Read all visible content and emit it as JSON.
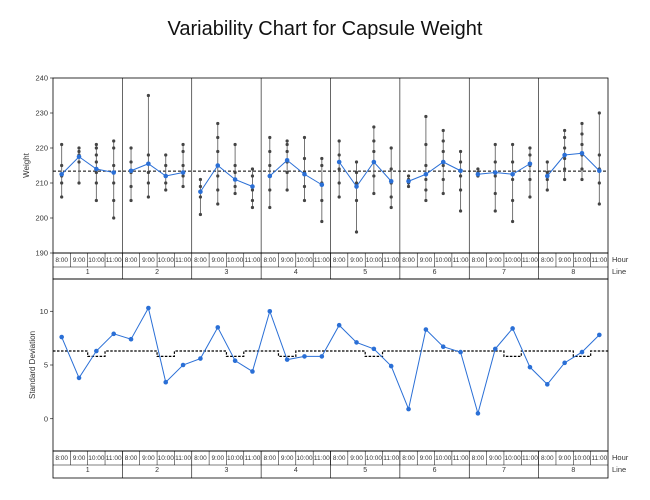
{
  "chart_data": {
    "type": "variability",
    "title": "Variability Chart for Capsule Weight",
    "x_levels": {
      "hour_label": "Hour",
      "line_label": "Line",
      "lines": [
        "1",
        "2",
        "3",
        "4",
        "5",
        "6",
        "7",
        "8"
      ],
      "hours": [
        "8:00",
        "9:00",
        "10:00",
        "11:00"
      ]
    },
    "colors": {
      "series": "#2a6fd6",
      "points": "#444444",
      "grid": "#000000",
      "reference": "#000000"
    },
    "top": {
      "ylabel": "Weight",
      "ylim": [
        190,
        240
      ],
      "yticks": [
        190,
        200,
        210,
        220,
        230,
        240
      ],
      "grand_mean": 213.4,
      "cells": [
        {
          "line": "1",
          "hour": "8:00",
          "mean": 212.5,
          "min": 206,
          "max": 221,
          "points": [
            206,
            210,
            212,
            215,
            221
          ]
        },
        {
          "line": "1",
          "hour": "9:00",
          "mean": 217.5,
          "min": 210,
          "max": 220,
          "points": [
            210,
            216,
            218,
            219,
            220
          ]
        },
        {
          "line": "1",
          "hour": "10:00",
          "mean": 214,
          "min": 205,
          "max": 221,
          "points": [
            205,
            210,
            213,
            216,
            218,
            220,
            221
          ]
        },
        {
          "line": "1",
          "hour": "11:00",
          "mean": 213,
          "min": 200,
          "max": 222,
          "points": [
            200,
            205,
            210,
            215,
            220,
            222
          ]
        },
        {
          "line": "2",
          "hour": "8:00",
          "mean": 213.5,
          "min": 205,
          "max": 220,
          "points": [
            205,
            209,
            213,
            216,
            220
          ]
        },
        {
          "line": "2",
          "hour": "9:00",
          "mean": 215.5,
          "min": 206,
          "max": 235,
          "points": [
            206,
            210,
            213,
            218,
            235
          ]
        },
        {
          "line": "2",
          "hour": "10:00",
          "mean": 212,
          "min": 208,
          "max": 218,
          "points": [
            208,
            210,
            212,
            215,
            218
          ]
        },
        {
          "line": "2",
          "hour": "11:00",
          "mean": 213,
          "min": 209,
          "max": 221,
          "points": [
            209,
            212,
            215,
            219,
            221
          ]
        },
        {
          "line": "3",
          "hour": "8:00",
          "mean": 207.5,
          "min": 201,
          "max": 211,
          "points": [
            201,
            206,
            209,
            211
          ]
        },
        {
          "line": "3",
          "hour": "9:00",
          "mean": 215,
          "min": 204,
          "max": 227,
          "points": [
            204,
            208,
            212,
            219,
            223,
            227
          ]
        },
        {
          "line": "3",
          "hour": "10:00",
          "mean": 211,
          "min": 207,
          "max": 221,
          "points": [
            207,
            209,
            213,
            215,
            221
          ]
        },
        {
          "line": "3",
          "hour": "11:00",
          "mean": 209,
          "min": 203,
          "max": 214,
          "points": [
            203,
            205,
            208,
            212,
            214
          ]
        },
        {
          "line": "4",
          "hour": "8:00",
          "mean": 212,
          "min": 203,
          "max": 223,
          "points": [
            203,
            208,
            212,
            215,
            219,
            223
          ]
        },
        {
          "line": "4",
          "hour": "9:00",
          "mean": 216.5,
          "min": 208,
          "max": 222,
          "points": [
            208,
            213,
            216,
            219,
            221,
            222
          ]
        },
        {
          "line": "4",
          "hour": "10:00",
          "mean": 212.5,
          "min": 205,
          "max": 223,
          "points": [
            205,
            209,
            213,
            217,
            223
          ]
        },
        {
          "line": "4",
          "hour": "11:00",
          "mean": 209.5,
          "min": 199,
          "max": 217,
          "points": [
            199,
            205,
            210,
            215,
            217
          ]
        },
        {
          "line": "5",
          "hour": "8:00",
          "mean": 216,
          "min": 206,
          "max": 222,
          "points": [
            206,
            210,
            214,
            218,
            222
          ]
        },
        {
          "line": "5",
          "hour": "9:00",
          "mean": 209,
          "min": 196,
          "max": 216,
          "points": [
            196,
            205,
            210,
            213,
            216
          ]
        },
        {
          "line": "5",
          "hour": "10:00",
          "mean": 216,
          "min": 207,
          "max": 226,
          "points": [
            207,
            212,
            216,
            219,
            222,
            226
          ]
        },
        {
          "line": "5",
          "hour": "11:00",
          "mean": 210.5,
          "min": 203,
          "max": 220,
          "points": [
            203,
            206,
            210,
            214,
            220
          ]
        },
        {
          "line": "6",
          "hour": "8:00",
          "mean": 210.5,
          "min": 209,
          "max": 212,
          "points": [
            209,
            210,
            211,
            212
          ]
        },
        {
          "line": "6",
          "hour": "9:00",
          "mean": 212.5,
          "min": 205,
          "max": 229,
          "points": [
            205,
            208,
            211,
            215,
            221,
            229
          ]
        },
        {
          "line": "6",
          "hour": "10:00",
          "mean": 216,
          "min": 207,
          "max": 225,
          "points": [
            207,
            211,
            215,
            219,
            222,
            225
          ]
        },
        {
          "line": "6",
          "hour": "11:00",
          "mean": 213.5,
          "min": 202,
          "max": 219,
          "points": [
            202,
            208,
            212,
            216,
            219
          ]
        },
        {
          "line": "7",
          "hour": "8:00",
          "mean": 212.5,
          "min": 212,
          "max": 214,
          "points": [
            212,
            213,
            214
          ]
        },
        {
          "line": "7",
          "hour": "9:00",
          "mean": 213,
          "min": 202,
          "max": 221,
          "points": [
            202,
            207,
            212,
            216,
            221
          ]
        },
        {
          "line": "7",
          "hour": "10:00",
          "mean": 212.5,
          "min": 199,
          "max": 221,
          "points": [
            199,
            205,
            211,
            216,
            221
          ]
        },
        {
          "line": "7",
          "hour": "11:00",
          "mean": 215.5,
          "min": 206,
          "max": 220,
          "points": [
            206,
            211,
            215,
            218,
            220
          ]
        },
        {
          "line": "8",
          "hour": "8:00",
          "mean": 212,
          "min": 208,
          "max": 216,
          "points": [
            208,
            211,
            213,
            216
          ]
        },
        {
          "line": "8",
          "hour": "9:00",
          "mean": 218,
          "min": 211,
          "max": 225,
          "points": [
            211,
            214,
            217,
            220,
            223,
            225
          ]
        },
        {
          "line": "8",
          "hour": "10:00",
          "mean": 218.5,
          "min": 211,
          "max": 227,
          "points": [
            211,
            214,
            218,
            221,
            224,
            227
          ]
        },
        {
          "line": "8",
          "hour": "11:00",
          "mean": 213.5,
          "min": 204,
          "max": 230,
          "points": [
            204,
            210,
            214,
            218,
            230
          ]
        }
      ]
    },
    "bottom": {
      "ylabel": "Standard Deviation",
      "ylim": [
        -3,
        13
      ],
      "yticks": [
        0,
        5,
        10
      ],
      "std_dev": [
        7.6,
        3.8,
        6.3,
        7.9,
        7.4,
        10.3,
        3.4,
        5.0,
        5.6,
        8.5,
        5.4,
        4.4,
        10.0,
        5.5,
        5.8,
        5.8,
        8.7,
        7.1,
        6.5,
        4.9,
        0.9,
        8.3,
        6.7,
        6.2,
        0.5,
        6.5,
        8.4,
        4.8,
        3.2,
        5.2,
        6.2,
        7.8
      ],
      "reference_limit": [
        6.3,
        6.3,
        5.8,
        6.3,
        6.3,
        6.3,
        5.8,
        6.3,
        6.3,
        6.3,
        5.8,
        6.3,
        6.3,
        5.8,
        6.3,
        6.3,
        6.3,
        6.3,
        5.8,
        6.3,
        6.3,
        6.3,
        6.3,
        6.3,
        6.3,
        6.3,
        5.8,
        6.3,
        6.3,
        6.3,
        5.8,
        6.3
      ]
    }
  }
}
